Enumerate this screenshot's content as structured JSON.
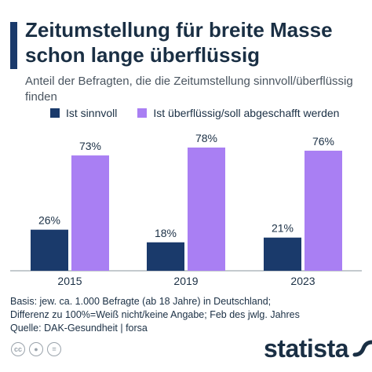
{
  "header": {
    "title": "Zeitumstellung für breite Masse schon lange überflüssig",
    "subtitle": "Anteil der Befragten, die die Zeitumstellung sinnvoll/überflüssig finden"
  },
  "colors": {
    "accent": "#1a3a6b",
    "series_dark": "#1a3a6b",
    "series_light": "#a97ff3",
    "text": "#1a2f44"
  },
  "chart_data": {
    "type": "bar",
    "title": "Zeitumstellung für breite Masse schon lange überflüssig",
    "subtitle": "Anteil der Befragten, die die Zeitumstellung sinnvoll/überflüssig finden",
    "categories": [
      "2015",
      "2019",
      "2023"
    ],
    "series": [
      {
        "name": "Ist sinnvoll",
        "values": [
          26,
          18,
          21
        ],
        "labels": [
          "26%",
          "18%",
          "21%"
        ],
        "color": "#1a3a6b"
      },
      {
        "name": "Ist überflüssig/soll abgeschafft werden",
        "values": [
          73,
          78,
          76
        ],
        "labels": [
          "73%",
          "78%",
          "76%"
        ],
        "color": "#a97ff3"
      }
    ],
    "ylim": [
      0,
      78
    ],
    "grid": false,
    "legend_position": "top-left"
  },
  "notes": {
    "basis": "Basis: jew. ca. 1.000 Befragte (ab 18 Jahre) in Deutschland;",
    "diff": "Differenz zu 100%=Weiß nicht/keine Angabe; Feb des jwlg. Jahres",
    "source": "Quelle: DAK-Gesundheit | forsa"
  },
  "footer": {
    "cc_icons": [
      "cc-icon",
      "by-icon",
      "equals-icon"
    ],
    "logo_text": "statista"
  }
}
